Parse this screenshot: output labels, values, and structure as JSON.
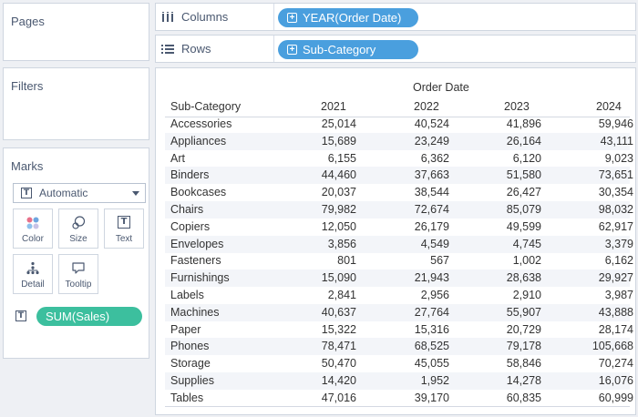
{
  "pages": {
    "title": "Pages"
  },
  "filters": {
    "title": "Filters"
  },
  "shelves": {
    "columns": {
      "label": "Columns",
      "pill": "YEAR(Order Date)"
    },
    "rows": {
      "label": "Rows",
      "pill": "Sub-Category"
    }
  },
  "marks": {
    "title": "Marks",
    "type_select": "Automatic",
    "buttons": {
      "color": "Color",
      "size": "Size",
      "text": "Text",
      "detail": "Detail",
      "tooltip": "Tooltip"
    },
    "text_field": "SUM(Sales)"
  },
  "table": {
    "column_header_title": "Order Date",
    "row_header": "Sub-Category",
    "years": [
      "2021",
      "2022",
      "2023",
      "2024"
    ],
    "rows": [
      {
        "name": "Accessories",
        "values": [
          "25,014",
          "40,524",
          "41,896",
          "59,946"
        ]
      },
      {
        "name": "Appliances",
        "values": [
          "15,689",
          "23,249",
          "26,164",
          "43,111"
        ]
      },
      {
        "name": "Art",
        "values": [
          "6,155",
          "6,362",
          "6,120",
          "9,023"
        ]
      },
      {
        "name": "Binders",
        "values": [
          "44,460",
          "37,663",
          "51,580",
          "73,651"
        ]
      },
      {
        "name": "Bookcases",
        "values": [
          "20,037",
          "38,544",
          "26,427",
          "30,354"
        ]
      },
      {
        "name": "Chairs",
        "values": [
          "79,982",
          "72,674",
          "85,079",
          "98,032"
        ]
      },
      {
        "name": "Copiers",
        "values": [
          "12,050",
          "26,179",
          "49,599",
          "62,917"
        ]
      },
      {
        "name": "Envelopes",
        "values": [
          "3,856",
          "4,549",
          "4,745",
          "3,379"
        ]
      },
      {
        "name": "Fasteners",
        "values": [
          "801",
          "567",
          "1,002",
          "6,162"
        ]
      },
      {
        "name": "Furnishings",
        "values": [
          "15,090",
          "21,943",
          "28,638",
          "29,927"
        ]
      },
      {
        "name": "Labels",
        "values": [
          "2,841",
          "2,956",
          "2,910",
          "3,987"
        ]
      },
      {
        "name": "Machines",
        "values": [
          "40,637",
          "27,764",
          "55,907",
          "43,888"
        ]
      },
      {
        "name": "Paper",
        "values": [
          "15,322",
          "15,316",
          "20,729",
          "28,174"
        ]
      },
      {
        "name": "Phones",
        "values": [
          "78,471",
          "68,525",
          "79,178",
          "105,668"
        ]
      },
      {
        "name": "Storage",
        "values": [
          "50,470",
          "45,055",
          "58,846",
          "70,274"
        ]
      },
      {
        "name": "Supplies",
        "values": [
          "14,420",
          "1,952",
          "14,278",
          "16,076"
        ]
      },
      {
        "name": "Tables",
        "values": [
          "47,016",
          "39,170",
          "60,835",
          "60,999"
        ]
      }
    ]
  },
  "colors": {
    "dimension_pill": "#4a9fde",
    "measure_pill": "#3cbf9e"
  }
}
